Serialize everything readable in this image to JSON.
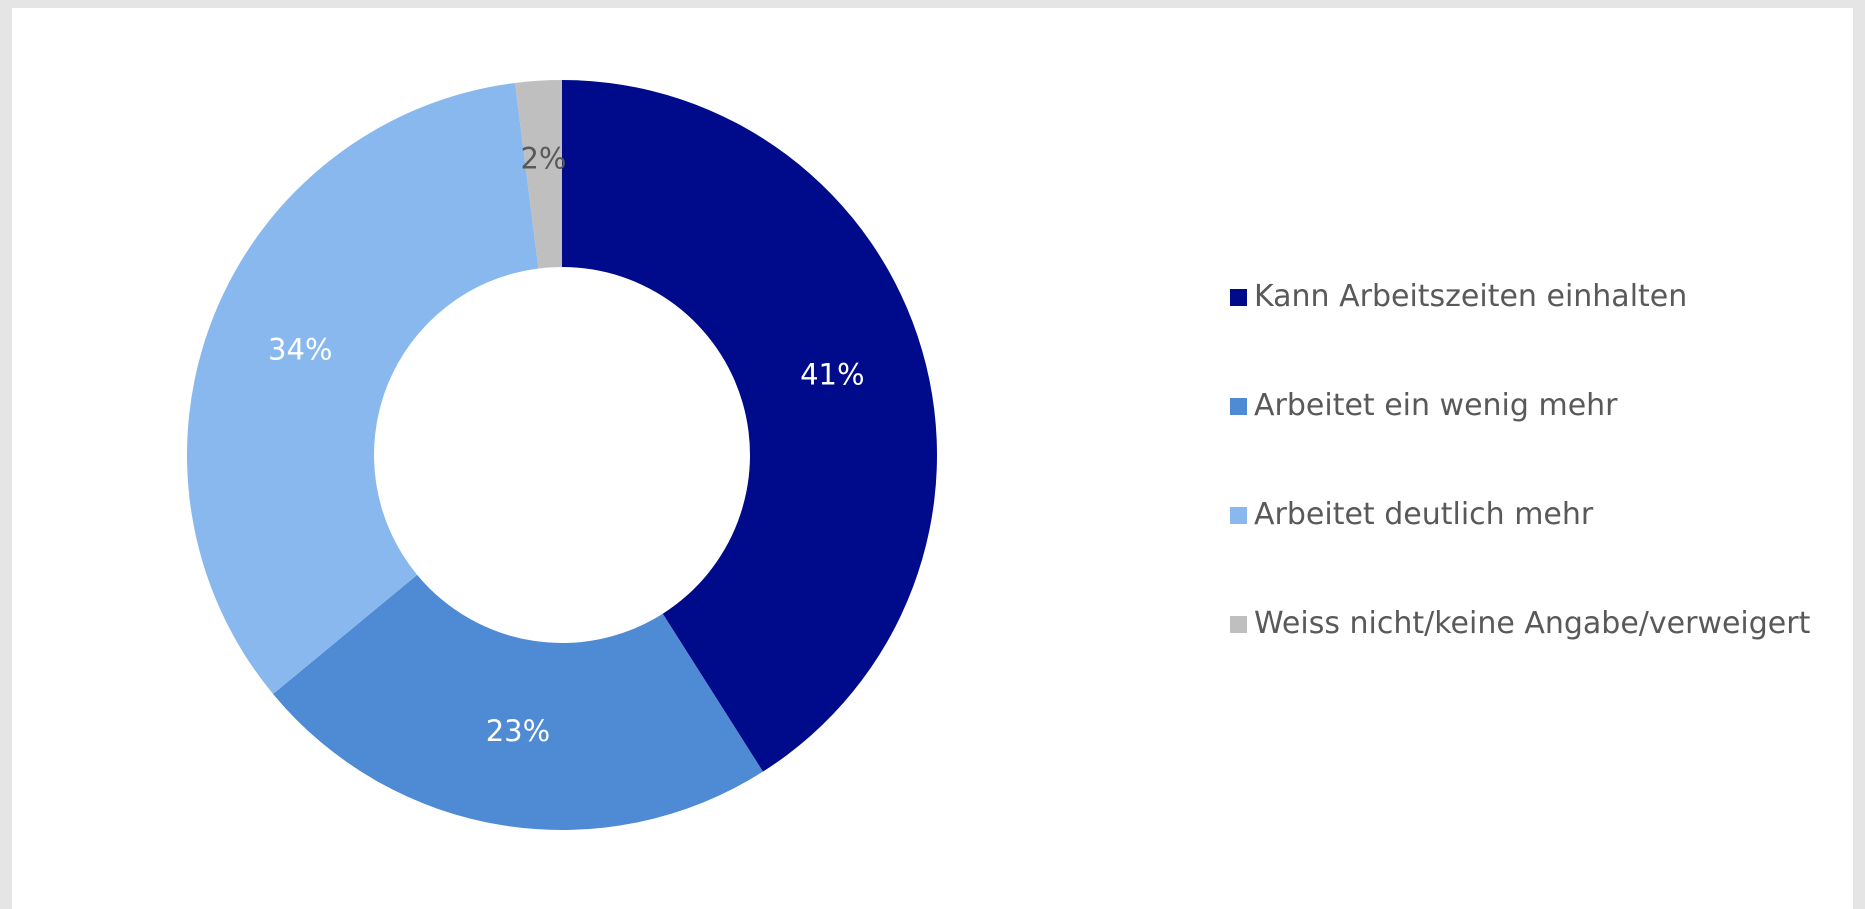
{
  "chart_data": {
    "type": "pie",
    "donut": true,
    "title": "",
    "labels": [
      "Kann Arbeitszeiten einhalten",
      "Arbeitet ein wenig mehr",
      "Arbeitet deutlich mehr",
      "Weiss nicht/keine Angabe/verweigert"
    ],
    "values": [
      41,
      23,
      34,
      2
    ],
    "value_labels": [
      "41%",
      "23%",
      "34%",
      "2%"
    ],
    "colors": [
      "#000b8c",
      "#4f8ad4",
      "#88b8ee",
      "#bfbfbf"
    ],
    "label_colors": [
      "#ffffff",
      "#ffffff",
      "#ffffff",
      "#595959"
    ],
    "legend_position": "right"
  }
}
